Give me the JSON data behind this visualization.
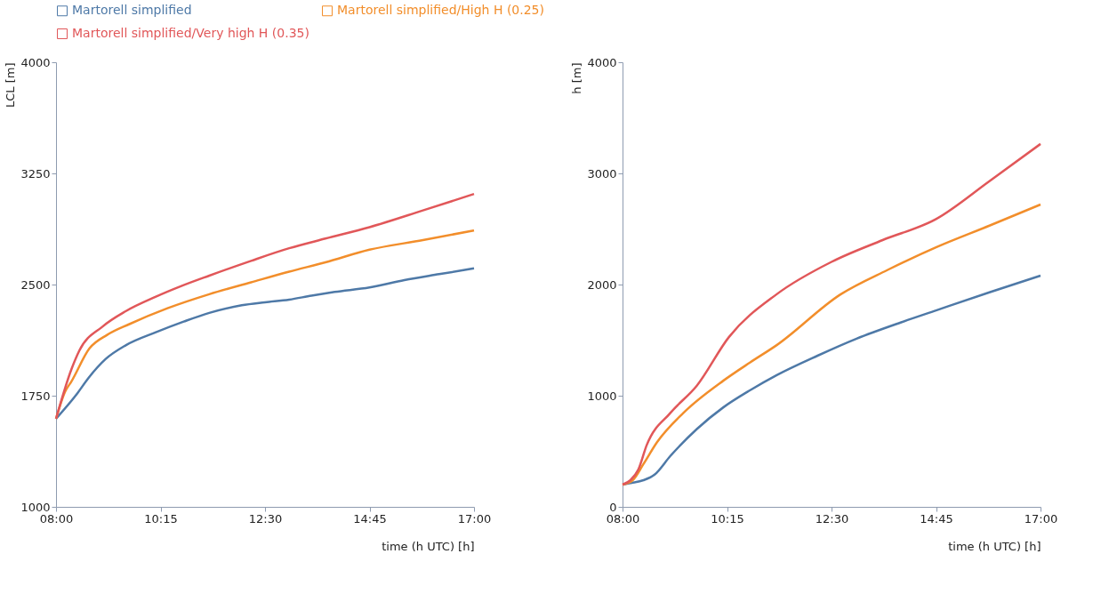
{
  "chart_data": [
    {
      "type": "line",
      "ylabel": "LCL [m]",
      "xlabel": "time (h UTC) [h]",
      "legend": "top right",
      "grid": false,
      "marker": "none",
      "line_style": "solid",
      "xlim": [
        8,
        17
      ],
      "xticks": [
        {
          "value": 8,
          "label": "08:00"
        },
        {
          "value": 10.25,
          "label": "10:15"
        },
        {
          "value": 12.5,
          "label": "12:30"
        },
        {
          "value": 14.75,
          "label": "14:45"
        },
        {
          "value": 17,
          "label": "17:00"
        }
      ],
      "ylim": [
        1000,
        4000
      ],
      "yticks": [
        1000,
        1750,
        2500,
        3250,
        4000
      ],
      "series": [
        {
          "name": "Martorell simplified",
          "color": "#4e79a7",
          "x": [
            8,
            8.45,
            8.7,
            9.07,
            9.5,
            10.15,
            10.75,
            11.3,
            12,
            12.5,
            13.02,
            13.5,
            14,
            14.75,
            15.5,
            16.25,
            17
          ],
          "values": [
            1595,
            1762,
            1870,
            1998,
            2090,
            2178,
            2250,
            2309,
            2360,
            2380,
            2398,
            2425,
            2450,
            2480,
            2530,
            2570,
            2609
          ]
        },
        {
          "name": "Martorell simplified/High H (0.25)",
          "color": "#f28e2b",
          "x": [
            8,
            8.2,
            8.33,
            8.72,
            9.1,
            9.58,
            10.4,
            11.3,
            12.2,
            13.02,
            13.8,
            14.75,
            15.9,
            17
          ],
          "values": [
            1595,
            1780,
            1845,
            2069,
            2160,
            2233,
            2340,
            2435,
            2515,
            2587,
            2650,
            2735,
            2800,
            2865
          ]
        },
        {
          "name": "Martorell simplified/Very high H (0.35)",
          "color": "#e15759",
          "x": [
            8,
            8.33,
            8.5,
            9.0,
            9.5,
            10.15,
            10.7,
            11.3,
            12.2,
            13.02,
            13.8,
            14.75,
            15.9,
            17
          ],
          "values": [
            1595,
            1927,
            2053,
            2216,
            2320,
            2418,
            2490,
            2560,
            2660,
            2745,
            2810,
            2887,
            3000,
            3111
          ]
        }
      ]
    },
    {
      "type": "line",
      "ylabel": "h [m]",
      "xlabel": "time (h UTC) [h]",
      "legend": "top right",
      "grid": false,
      "marker": "none",
      "line_style": "solid",
      "xlim": [
        8,
        17
      ],
      "xticks": [
        {
          "value": 8,
          "label": "08:00"
        },
        {
          "value": 10.25,
          "label": "10:15"
        },
        {
          "value": 12.5,
          "label": "12:30"
        },
        {
          "value": 14.75,
          "label": "14:45"
        },
        {
          "value": 17,
          "label": "17:00"
        }
      ],
      "ylim": [
        0,
        4000
      ],
      "yticks": [
        0,
        1000,
        2000,
        3000,
        4000
      ],
      "series": [
        {
          "name": "Martorell simplified",
          "color": "#4e79a7",
          "x": [
            8,
            8.2,
            8.45,
            8.69,
            9.03,
            9.6,
            10.17,
            10.75,
            11.32,
            12.2,
            13.04,
            14,
            14.75,
            15.9,
            17
          ],
          "values": [
            200,
            215,
            240,
            290,
            458,
            700,
            895,
            1050,
            1185,
            1360,
            1513,
            1660,
            1767,
            1930,
            2080
          ]
        },
        {
          "name": "Martorell simplified/High H (0.25)",
          "color": "#f28e2b",
          "x": [
            8,
            8.22,
            8.45,
            8.74,
            9.31,
            10.17,
            10.75,
            11.32,
            12.7,
            13.7,
            14.75,
            15.9,
            17
          ],
          "values": [
            200,
            240,
            385,
            580,
            845,
            1135,
            1300,
            1455,
            1913,
            2130,
            2335,
            2530,
            2720
          ]
        },
        {
          "name": "Martorell simplified/Very high H (0.35)",
          "color": "#e15759",
          "x": [
            8,
            8.17,
            8.34,
            8.52,
            9.03,
            9.6,
            10.29,
            11.32,
            12.5,
            13.6,
            14.75,
            15.9,
            17
          ],
          "values": [
            200,
            240,
            335,
            555,
            845,
            1090,
            1527,
            1913,
            2204,
            2400,
            2589,
            2930,
            3265
          ]
        }
      ]
    }
  ]
}
